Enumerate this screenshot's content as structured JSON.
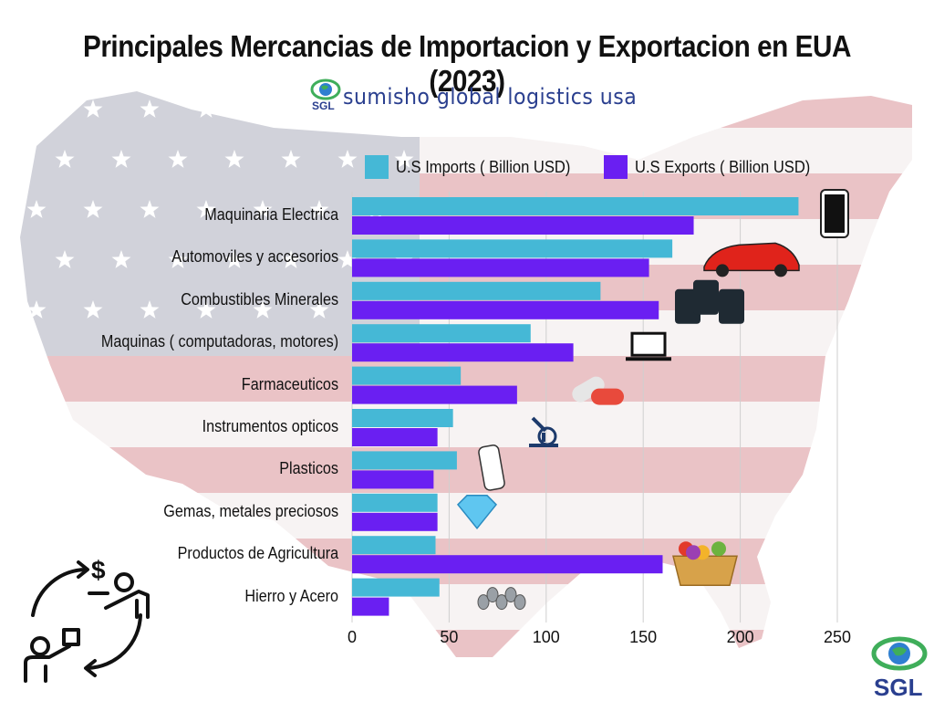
{
  "header": {
    "title": "Principales Mercancias de Importacion y Exportacion en EUA (2023)",
    "brand_name": "sumisho global logistics usa",
    "brand_badge": "SGL"
  },
  "footer": {
    "logo_text": "SGL"
  },
  "colors": {
    "imports": "#45b8d6",
    "exports": "#6a1ff2",
    "flag_red": "#e7b9bd",
    "flag_white": "#f6f1f1",
    "flag_blue": "#c9cbd4",
    "brand_blue": "#2a3f8f",
    "brand_green": "#3fae5a"
  },
  "icons": [
    "smartphone-icon",
    "sports-car-icon",
    "oil-barrels-icon",
    "laptop-icon",
    "pill-capsules-icon",
    "microscope-icon",
    "plastic-bottle-icon",
    "diamond-icon",
    "fruit-basket-icon",
    "steel-pipes-icon",
    "trade-exchange-icon",
    "sgl-globe-logo-icon"
  ],
  "chart_data": {
    "type": "bar",
    "orientation": "horizontal",
    "title": "Principales Mercancias de Importacion y Exportacion en EUA (2023)",
    "legend_position": "top",
    "categories": [
      "Maquinaria Electrica",
      "Automoviles y accesorios",
      "Combustibles Minerales",
      "Maquinas ( computadoras, motores)",
      "Farmaceuticos",
      "Instrumentos opticos",
      "Plasticos",
      "Gemas, metales preciosos",
      "Productos de Agricultura",
      "Hierro y Acero"
    ],
    "series": [
      {
        "name": "U.S Imports ( Billion USD)",
        "values": [
          230,
          165,
          128,
          92,
          56,
          52,
          54,
          44,
          43,
          45
        ]
      },
      {
        "name": "U.S Exports ( Billion USD)",
        "values": [
          176,
          153,
          158,
          114,
          85,
          44,
          42,
          44,
          160,
          19
        ]
      }
    ],
    "xlim": [
      0,
      250
    ],
    "xticks": [
      0,
      50,
      100,
      150,
      200,
      250
    ],
    "grid": true
  }
}
